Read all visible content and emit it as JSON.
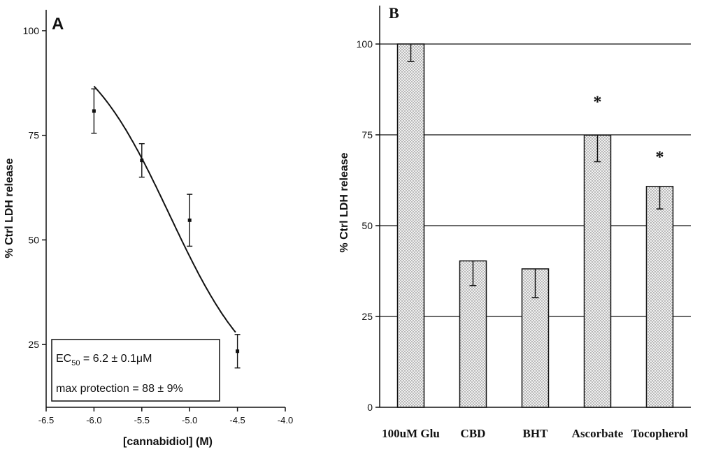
{
  "chart_data": [
    {
      "panel_label": "A",
      "type": "scatter",
      "xlabel": "[cannabidiol] (M)",
      "ylabel": "% Ctrl LDH release",
      "xlim": [
        -6.5,
        -4.0
      ],
      "ylim": [
        10,
        105
      ],
      "x_ticks": [
        -6.5,
        -6.0,
        -5.5,
        -5.0,
        -4.5,
        -4.0
      ],
      "x_tick_labels": [
        "-6.5",
        "-6.0",
        "-5.5",
        "-5.0",
        "-4.5",
        "-4.0"
      ],
      "y_ticks": [
        25,
        50,
        75,
        100
      ],
      "y_tick_labels": [
        "25",
        "50",
        "75",
        "100"
      ],
      "points": [
        {
          "x": -6.0,
          "y": 80.8,
          "err": 5.3
        },
        {
          "x": -5.5,
          "y": 69.0,
          "err": 4.0
        },
        {
          "x": -5.0,
          "y": 54.7,
          "err": 6.2
        },
        {
          "x": -4.5,
          "y": 23.4,
          "err": 4.0
        }
      ],
      "fit_curve": {
        "type": "sigmoid",
        "top": 100,
        "bottom": 12,
        "log_ec50": -5.21,
        "slope": 0.95,
        "x_range": [
          -6.0,
          -4.52
        ]
      },
      "annotation": {
        "ec50_prefix": "EC",
        "ec50_sub": "50",
        "ec50_value": " = 6.2 ± 0.1μM",
        "max_protection": "max protection = 88 ± 9%"
      }
    },
    {
      "panel_label": "B",
      "type": "bar",
      "ylabel": "% Ctrl LDH release",
      "ylim": [
        0,
        100
      ],
      "grid": true,
      "y_ticks": [
        0,
        25,
        50,
        75,
        100
      ],
      "y_tick_labels": [
        "0",
        "25",
        "50",
        "75",
        "100"
      ],
      "categories": [
        "100uM Glu",
        "CBD",
        "BHT",
        "Ascorbate",
        "Tocopherol"
      ],
      "values": [
        100,
        40.3,
        38.1,
        74.9,
        60.8
      ],
      "errors": [
        4.8,
        6.8,
        7.9,
        7.3,
        6.2
      ],
      "markers": [
        "",
        "",
        "",
        "*",
        "*"
      ]
    }
  ],
  "colors": {
    "ink": "#111111",
    "bar_fill": "#f1f1f1",
    "bar_dots": "#666666"
  }
}
